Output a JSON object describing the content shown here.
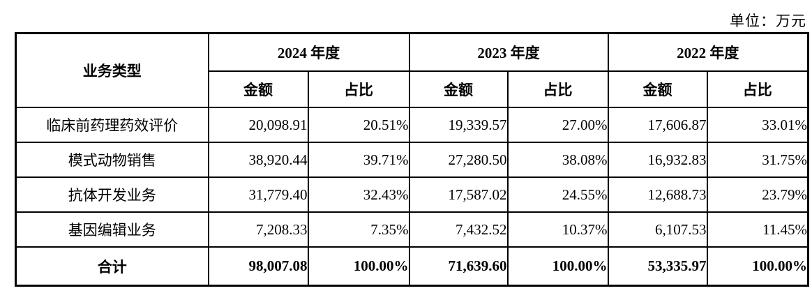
{
  "unit_label": "单位：万元",
  "table": {
    "type": "table",
    "col0_header": "业务类型",
    "year_headers": [
      "2024 年度",
      "2023 年度",
      "2022 年度"
    ],
    "amount_header": "金额",
    "ratio_header": "占比",
    "rows": [
      {
        "label": "临床前药理药效评价",
        "values": [
          "20,098.91",
          "20.51%",
          "19,339.57",
          "27.00%",
          "17,606.87",
          "33.01%"
        ]
      },
      {
        "label": "模式动物销售",
        "values": [
          "38,920.44",
          "39.71%",
          "27,280.50",
          "38.08%",
          "16,932.83",
          "31.75%"
        ]
      },
      {
        "label": "抗体开发业务",
        "values": [
          "31,779.40",
          "32.43%",
          "17,587.02",
          "24.55%",
          "12,688.73",
          "23.79%"
        ]
      },
      {
        "label": "基因编辑业务",
        "values": [
          "7,208.33",
          "7.35%",
          "7,432.52",
          "10.37%",
          "6,107.53",
          "11.45%"
        ]
      }
    ],
    "total_row": {
      "label": "合计",
      "values": [
        "98,007.08",
        "100.00%",
        "71,639.60",
        "100.00%",
        "53,335.97",
        "100.00%"
      ]
    }
  }
}
